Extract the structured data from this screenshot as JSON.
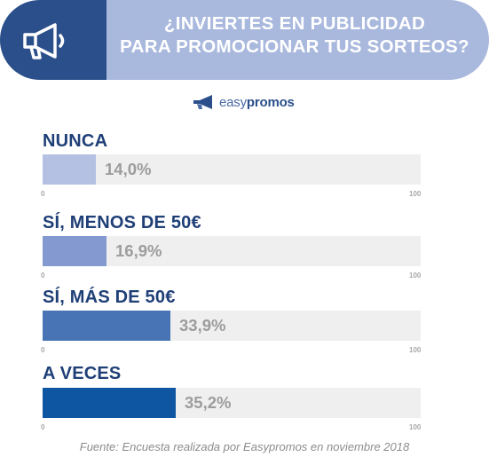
{
  "header": {
    "title_line1": "¿INVIERTES EN PUBLICIDAD",
    "title_line2": "PARA PROMOCIONAR TUS SORTEOS?",
    "icon": "megaphone-icon"
  },
  "brand": {
    "part1": "easy",
    "part2": "promos",
    "icon": "megaphone-logo-icon"
  },
  "colors": {
    "banner_dark": "#2b4f8a",
    "banner_light": "#a9b8dd",
    "track": "#efefef",
    "label": "#1f3f77",
    "value": "#9c9c9c"
  },
  "chart_data": {
    "type": "bar",
    "orientation": "horizontal",
    "xlim": [
      0,
      100
    ],
    "tick_min_label": "0",
    "tick_max_label": "100",
    "categories": [
      "NUNCA",
      "SÍ, MENOS DE 50€",
      "SÍ, MÁS DE 50€",
      "A VECES"
    ],
    "values": [
      14.0,
      16.9,
      33.9,
      35.2
    ],
    "value_labels": [
      "14,0%",
      "16,9%",
      "33,9%",
      "35,2%"
    ],
    "bar_colors": [
      "#b4c1e2",
      "#8399cf",
      "#4874b6",
      "#0e55a2"
    ]
  },
  "footer": {
    "source": "Fuente: Encuesta realizada por Easypromos en noviembre 2018"
  }
}
